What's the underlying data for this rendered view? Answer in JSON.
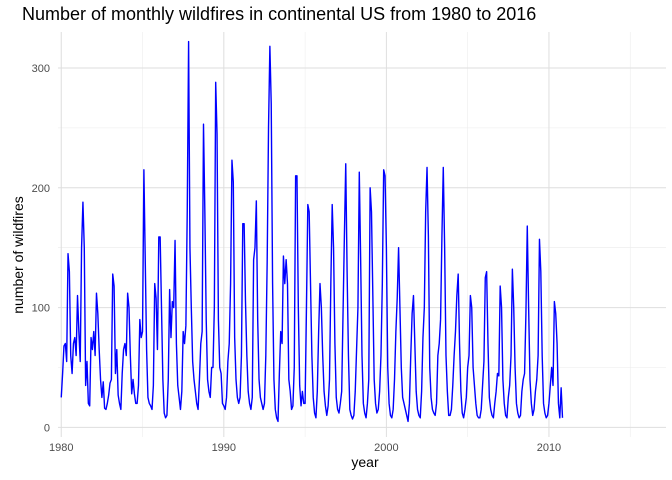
{
  "chart_data": {
    "type": "line",
    "title": "Number of monthly wildfires in continental US from 1980 to 2016",
    "xlabel": "year",
    "ylabel": "number of wildfires",
    "xlim": [
      1979.8,
      2017.2
    ],
    "ylim": [
      -8,
      330
    ],
    "x_ticks": [
      1980,
      1990,
      2000,
      2010
    ],
    "y_ticks": [
      0,
      100,
      200,
      300
    ],
    "grid": true,
    "color": "#0000ff",
    "series": [
      {
        "x_start": 1980.0,
        "x_step": 0.08333333,
        "values": [
          25,
          45,
          68,
          70,
          55,
          145,
          130,
          60,
          45,
          70,
          75,
          60,
          110,
          80,
          55,
          150,
          188,
          150,
          35,
          55,
          20,
          18,
          75,
          65,
          80,
          60,
          112,
          95,
          65,
          40,
          25,
          38,
          16,
          15,
          20,
          27,
          37,
          40,
          128,
          118,
          45,
          65,
          27,
          20,
          15,
          45,
          65,
          70,
          60,
          112,
          100,
          60,
          28,
          40,
          28,
          20,
          20,
          35,
          90,
          75,
          80,
          215,
          140,
          65,
          25,
          20,
          18,
          15,
          35,
          120,
          108,
          65,
          159,
          159,
          100,
          40,
          12,
          8,
          10,
          40,
          115,
          75,
          105,
          100,
          156,
          70,
          35,
          25,
          15,
          30,
          80,
          70,
          85,
          180,
          322,
          150,
          100,
          55,
          40,
          30,
          20,
          15,
          40,
          70,
          80,
          253,
          180,
          90,
          40,
          30,
          25,
          50,
          50,
          100,
          288,
          245,
          90,
          50,
          45,
          20,
          18,
          15,
          25,
          55,
          70,
          120,
          223,
          205,
          75,
          40,
          25,
          20,
          25,
          60,
          170,
          170,
          105,
          60,
          30,
          20,
          15,
          25,
          140,
          150,
          189,
          90,
          40,
          25,
          20,
          15,
          20,
          60,
          138,
          250,
          318,
          270,
          120,
          40,
          15,
          8,
          5,
          45,
          80,
          70,
          143,
          120,
          140,
          120,
          40,
          30,
          15,
          18,
          50,
          210,
          210,
          100,
          35,
          18,
          30,
          20,
          20,
          100,
          186,
          180,
          120,
          60,
          25,
          12,
          8,
          30,
          80,
          120,
          100,
          60,
          30,
          18,
          10,
          18,
          40,
          120,
          186,
          150,
          70,
          25,
          15,
          12,
          20,
          30,
          95,
          160,
          220,
          130,
          60,
          15,
          10,
          7,
          10,
          30,
          65,
          100,
          213,
          140,
          60,
          20,
          12,
          8,
          20,
          40,
          200,
          180,
          110,
          40,
          20,
          12,
          15,
          30,
          60,
          120,
          215,
          210,
          150,
          50,
          20,
          10,
          8,
          15,
          40,
          80,
          108,
          150,
          100,
          50,
          25,
          20,
          15,
          10,
          5,
          20,
          60,
          95,
          110,
          70,
          30,
          15,
          10,
          8,
          30,
          75,
          100,
          180,
          217,
          160,
          50,
          25,
          15,
          12,
          10,
          20,
          60,
          70,
          90,
          160,
          217,
          150,
          60,
          30,
          10,
          10,
          15,
          35,
          60,
          80,
          110,
          128,
          70,
          30,
          12,
          8,
          15,
          25,
          50,
          60,
          110,
          100,
          50,
          35,
          20,
          10,
          8,
          8,
          15,
          35,
          55,
          125,
          130,
          70,
          25,
          15,
          10,
          8,
          20,
          30,
          45,
          43,
          118,
          100,
          40,
          20,
          10,
          8,
          25,
          35,
          60,
          132,
          100,
          50,
          20,
          12,
          8,
          10,
          30,
          40,
          45,
          95,
          168,
          100,
          40,
          20,
          10,
          15,
          30,
          40,
          60,
          157,
          130,
          60,
          20,
          12,
          8,
          10,
          20,
          35,
          50,
          35,
          105,
          95,
          70,
          20,
          8,
          33,
          8
        ]
      }
    ]
  }
}
